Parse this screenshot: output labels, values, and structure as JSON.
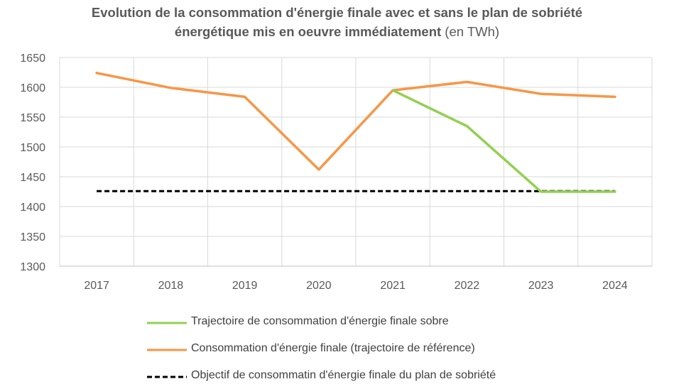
{
  "title": {
    "line1": "Evolution de la consommation d'énergie finale avec et sans le plan de sobriété",
    "line2_bold": "énergétique mis en oeuvre immédiatement",
    "line2_normal": " (en TWh)"
  },
  "chart_data": {
    "type": "line",
    "categories": [
      "2017",
      "2018",
      "2019",
      "2020",
      "2021",
      "2022",
      "2023",
      "2024"
    ],
    "ylim": [
      1300,
      1650
    ],
    "yticks": [
      1300,
      1350,
      1400,
      1450,
      1500,
      1550,
      1600,
      1650
    ],
    "grid": true,
    "legend_position": "bottom",
    "series": [
      {
        "name": "Trajectoire de consommation d'énergie finale sobre",
        "color": "#92d050",
        "dash": "solid",
        "values": [
          null,
          null,
          null,
          null,
          1595,
          1535,
          1425,
          1425
        ]
      },
      {
        "name": "Consommation d'énergie finale (trajectoire de référence)",
        "color": "#f79646",
        "dash": "solid",
        "values": [
          1624,
          1599,
          1584,
          1462,
          1595,
          1609,
          1589,
          1584
        ]
      },
      {
        "name": "Objectif  de consommatin d'énergie finale du plan de sobriété",
        "color": "#000000",
        "dash": "dashed",
        "values": [
          1426,
          1426,
          1426,
          1426,
          1426,
          1426,
          1426,
          1426
        ]
      }
    ]
  }
}
